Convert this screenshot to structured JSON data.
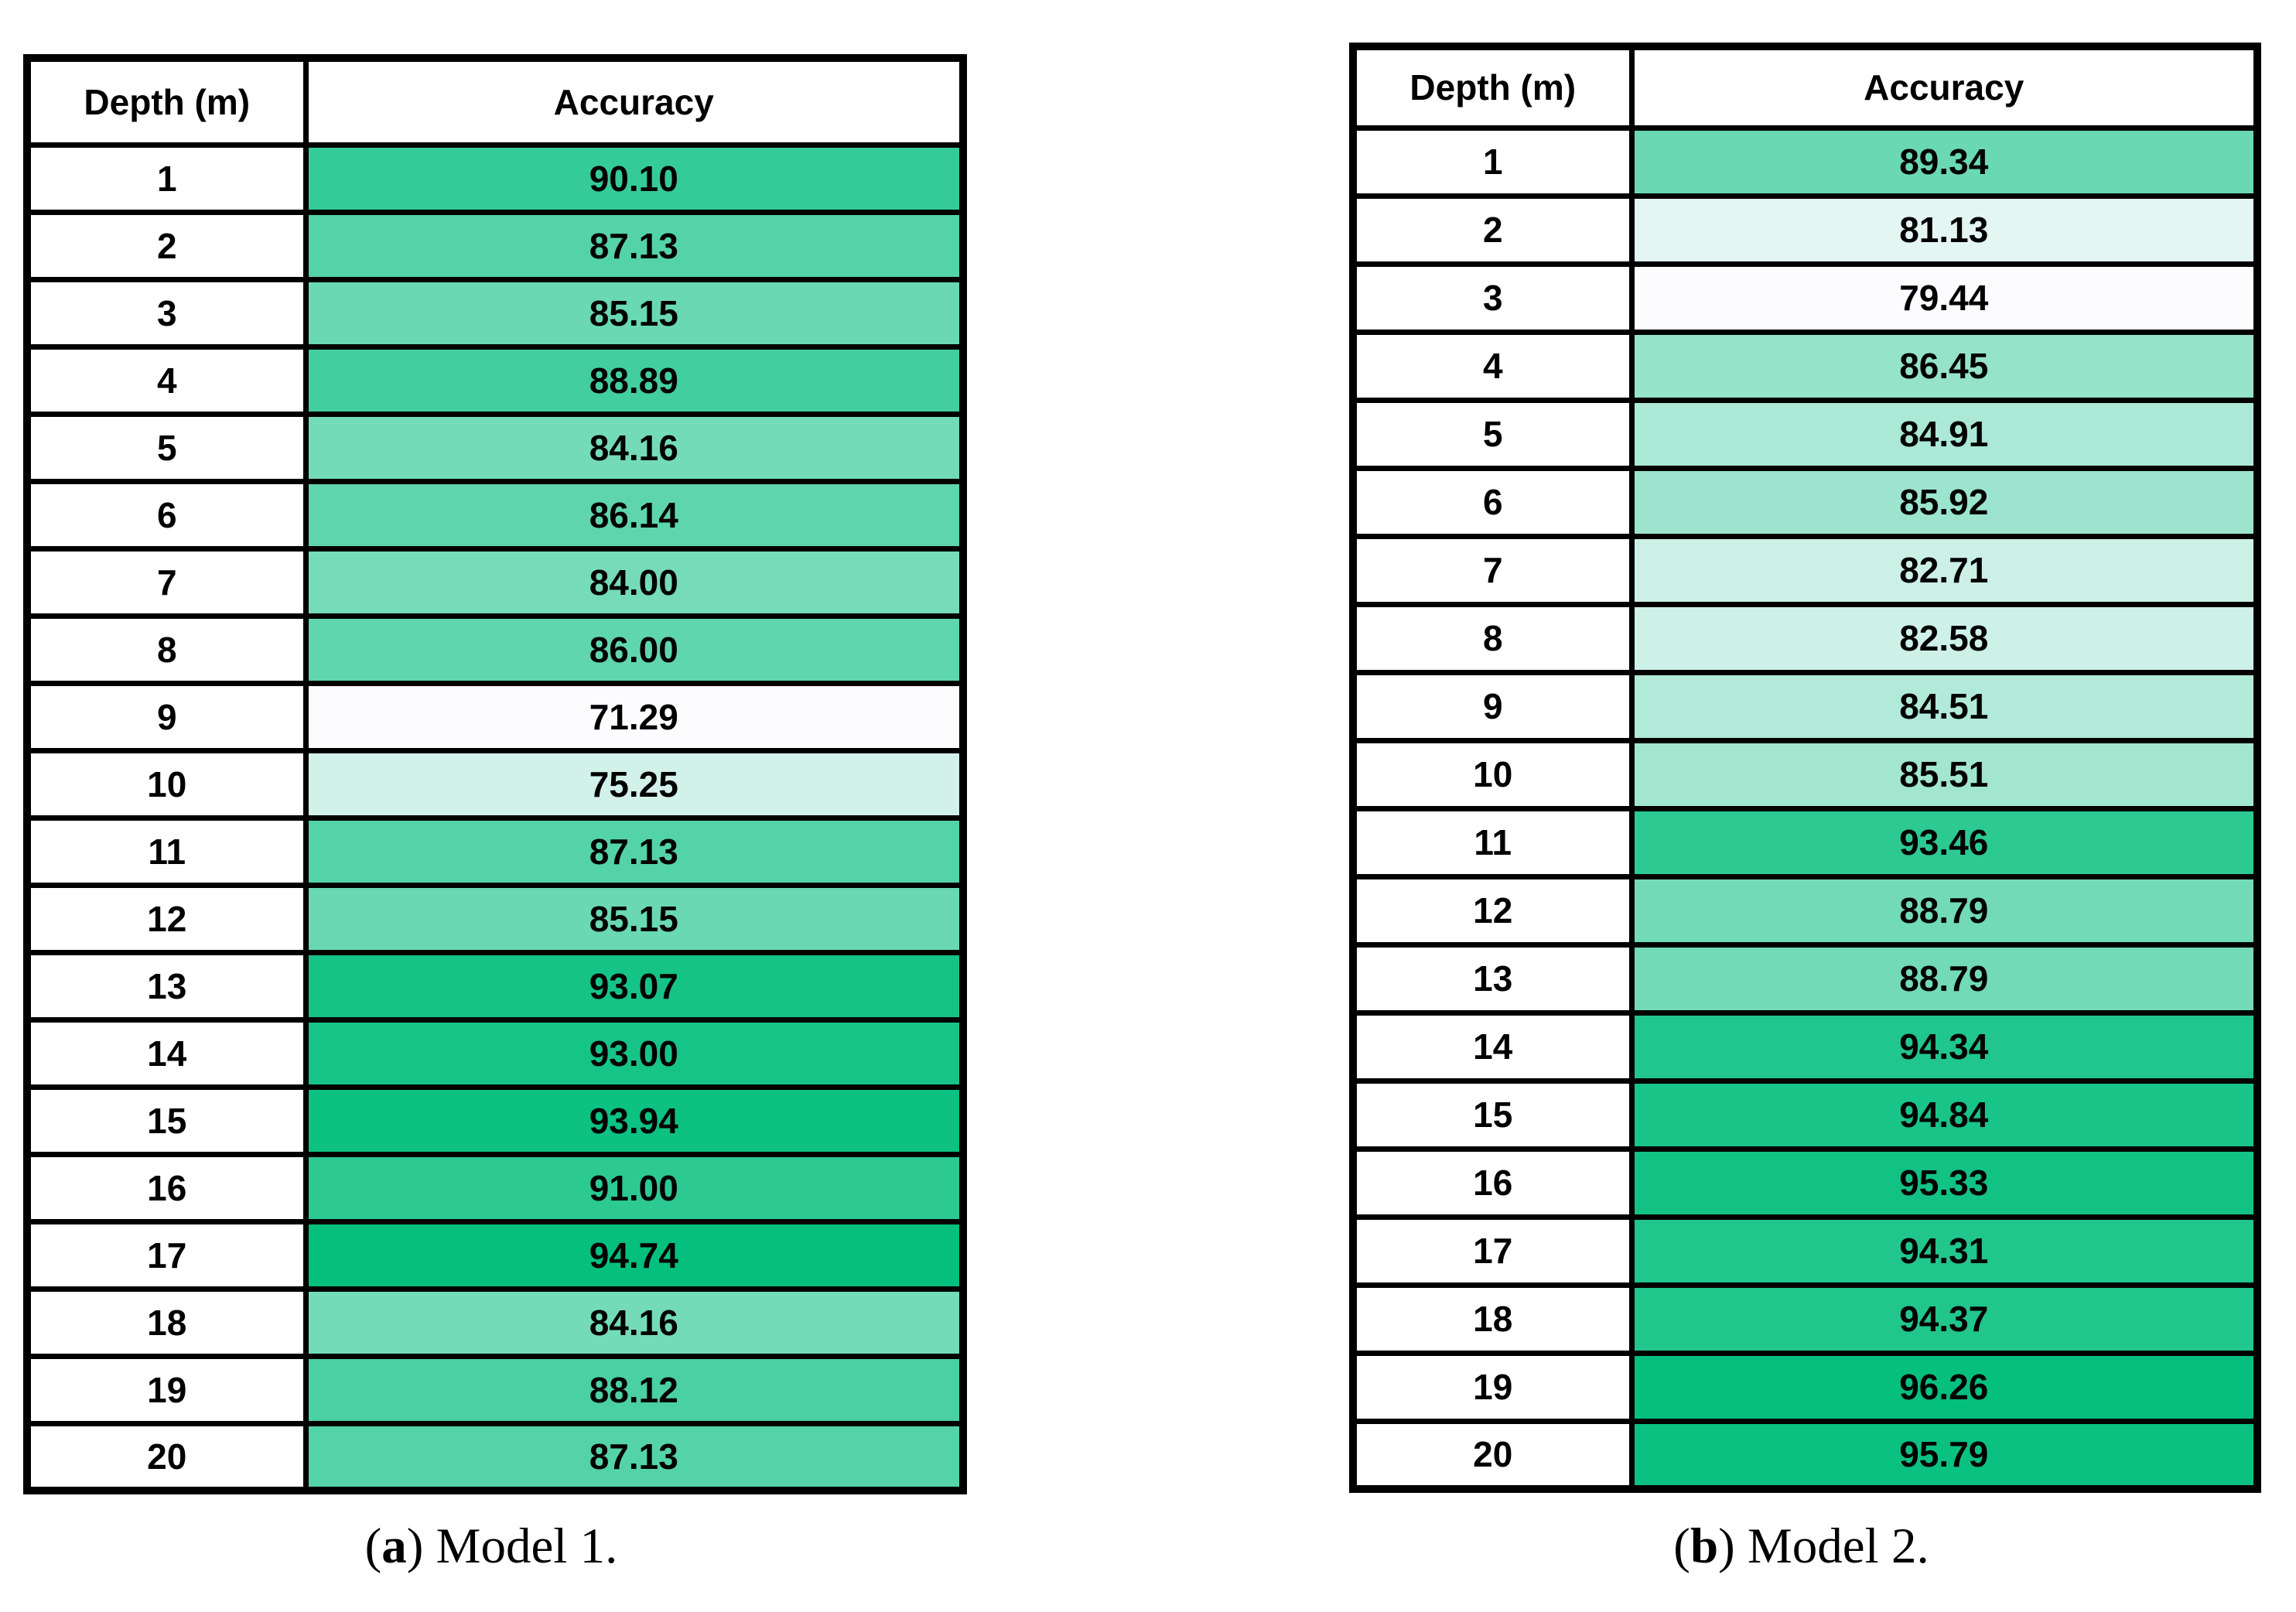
{
  "figure": {
    "background": "#ffffff",
    "border_color": "#000000",
    "panels": [
      {
        "id": "a",
        "caption": {
          "open": "(",
          "letter": "a",
          "rest": ") Model 1."
        },
        "table": {
          "columns": [
            "Depth (m)",
            "Accuracy"
          ],
          "rows": [
            {
              "depth": "1",
              "accuracy": "90.10"
            },
            {
              "depth": "2",
              "accuracy": "87.13"
            },
            {
              "depth": "3",
              "accuracy": "85.15"
            },
            {
              "depth": "4",
              "accuracy": "88.89"
            },
            {
              "depth": "5",
              "accuracy": "84.16"
            },
            {
              "depth": "6",
              "accuracy": "86.14"
            },
            {
              "depth": "7",
              "accuracy": "84.00"
            },
            {
              "depth": "8",
              "accuracy": "86.00"
            },
            {
              "depth": "9",
              "accuracy": "71.29"
            },
            {
              "depth": "10",
              "accuracy": "75.25"
            },
            {
              "depth": "11",
              "accuracy": "87.13"
            },
            {
              "depth": "12",
              "accuracy": "85.15"
            },
            {
              "depth": "13",
              "accuracy": "93.07"
            },
            {
              "depth": "14",
              "accuracy": "93.00"
            },
            {
              "depth": "15",
              "accuracy": "93.94"
            },
            {
              "depth": "16",
              "accuracy": "91.00"
            },
            {
              "depth": "17",
              "accuracy": "94.74"
            },
            {
              "depth": "18",
              "accuracy": "84.16"
            },
            {
              "depth": "19",
              "accuracy": "88.12"
            },
            {
              "depth": "20",
              "accuracy": "87.13"
            }
          ]
        },
        "color_scale": {
          "min_value": 71.29,
          "max_value": 94.74,
          "min_color": "#FCFCFF",
          "max_color": "#04BF7E"
        }
      },
      {
        "id": "b",
        "caption": {
          "open": "(",
          "letter": "b",
          "rest": ") Model 2."
        },
        "table": {
          "columns": [
            "Depth (m)",
            "Accuracy"
          ],
          "rows": [
            {
              "depth": "1",
              "accuracy": "89.34"
            },
            {
              "depth": "2",
              "accuracy": "81.13"
            },
            {
              "depth": "3",
              "accuracy": "79.44"
            },
            {
              "depth": "4",
              "accuracy": "86.45"
            },
            {
              "depth": "5",
              "accuracy": "84.91"
            },
            {
              "depth": "6",
              "accuracy": "85.92"
            },
            {
              "depth": "7",
              "accuracy": "82.71"
            },
            {
              "depth": "8",
              "accuracy": "82.58"
            },
            {
              "depth": "9",
              "accuracy": "84.51"
            },
            {
              "depth": "10",
              "accuracy": "85.51"
            },
            {
              "depth": "11",
              "accuracy": "93.46"
            },
            {
              "depth": "12",
              "accuracy": "88.79"
            },
            {
              "depth": "13",
              "accuracy": "88.79"
            },
            {
              "depth": "14",
              "accuracy": "94.34"
            },
            {
              "depth": "15",
              "accuracy": "94.84"
            },
            {
              "depth": "16",
              "accuracy": "95.33"
            },
            {
              "depth": "17",
              "accuracy": "94.31"
            },
            {
              "depth": "18",
              "accuracy": "94.37"
            },
            {
              "depth": "19",
              "accuracy": "96.26"
            },
            {
              "depth": "20",
              "accuracy": "95.79"
            }
          ]
        },
        "color_scale": {
          "min_value": 79.44,
          "max_value": 96.26,
          "min_color": "#FCFCFF",
          "max_color": "#04BF7E"
        }
      }
    ]
  },
  "chart_data": [
    {
      "type": "table",
      "title": "(a) Model 1.",
      "columns": [
        "Depth (m)",
        "Accuracy"
      ],
      "depth": [
        1,
        2,
        3,
        4,
        5,
        6,
        7,
        8,
        9,
        10,
        11,
        12,
        13,
        14,
        15,
        16,
        17,
        18,
        19,
        20
      ],
      "accuracy": [
        90.1,
        87.13,
        85.15,
        88.89,
        84.16,
        86.14,
        84.0,
        86.0,
        71.29,
        75.25,
        87.13,
        85.15,
        93.07,
        93.0,
        93.94,
        91.0,
        94.74,
        84.16,
        88.12,
        87.13
      ],
      "heatmap": {
        "applies_to": "Accuracy",
        "style": "white-to-green color scale",
        "min": 71.29,
        "max": 94.74,
        "min_color": "#FCFCFF",
        "max_color": "#04BF7E"
      }
    },
    {
      "type": "table",
      "title": "(b) Model 2.",
      "columns": [
        "Depth (m)",
        "Accuracy"
      ],
      "depth": [
        1,
        2,
        3,
        4,
        5,
        6,
        7,
        8,
        9,
        10,
        11,
        12,
        13,
        14,
        15,
        16,
        17,
        18,
        19,
        20
      ],
      "accuracy": [
        89.34,
        81.13,
        79.44,
        86.45,
        84.91,
        85.92,
        82.71,
        82.58,
        84.51,
        85.51,
        93.46,
        88.79,
        88.79,
        94.34,
        94.84,
        95.33,
        94.31,
        94.37,
        96.26,
        95.79
      ],
      "heatmap": {
        "applies_to": "Accuracy",
        "style": "white-to-green color scale",
        "min": 79.44,
        "max": 96.26,
        "min_color": "#FCFCFF",
        "max_color": "#04BF7E"
      }
    }
  ]
}
